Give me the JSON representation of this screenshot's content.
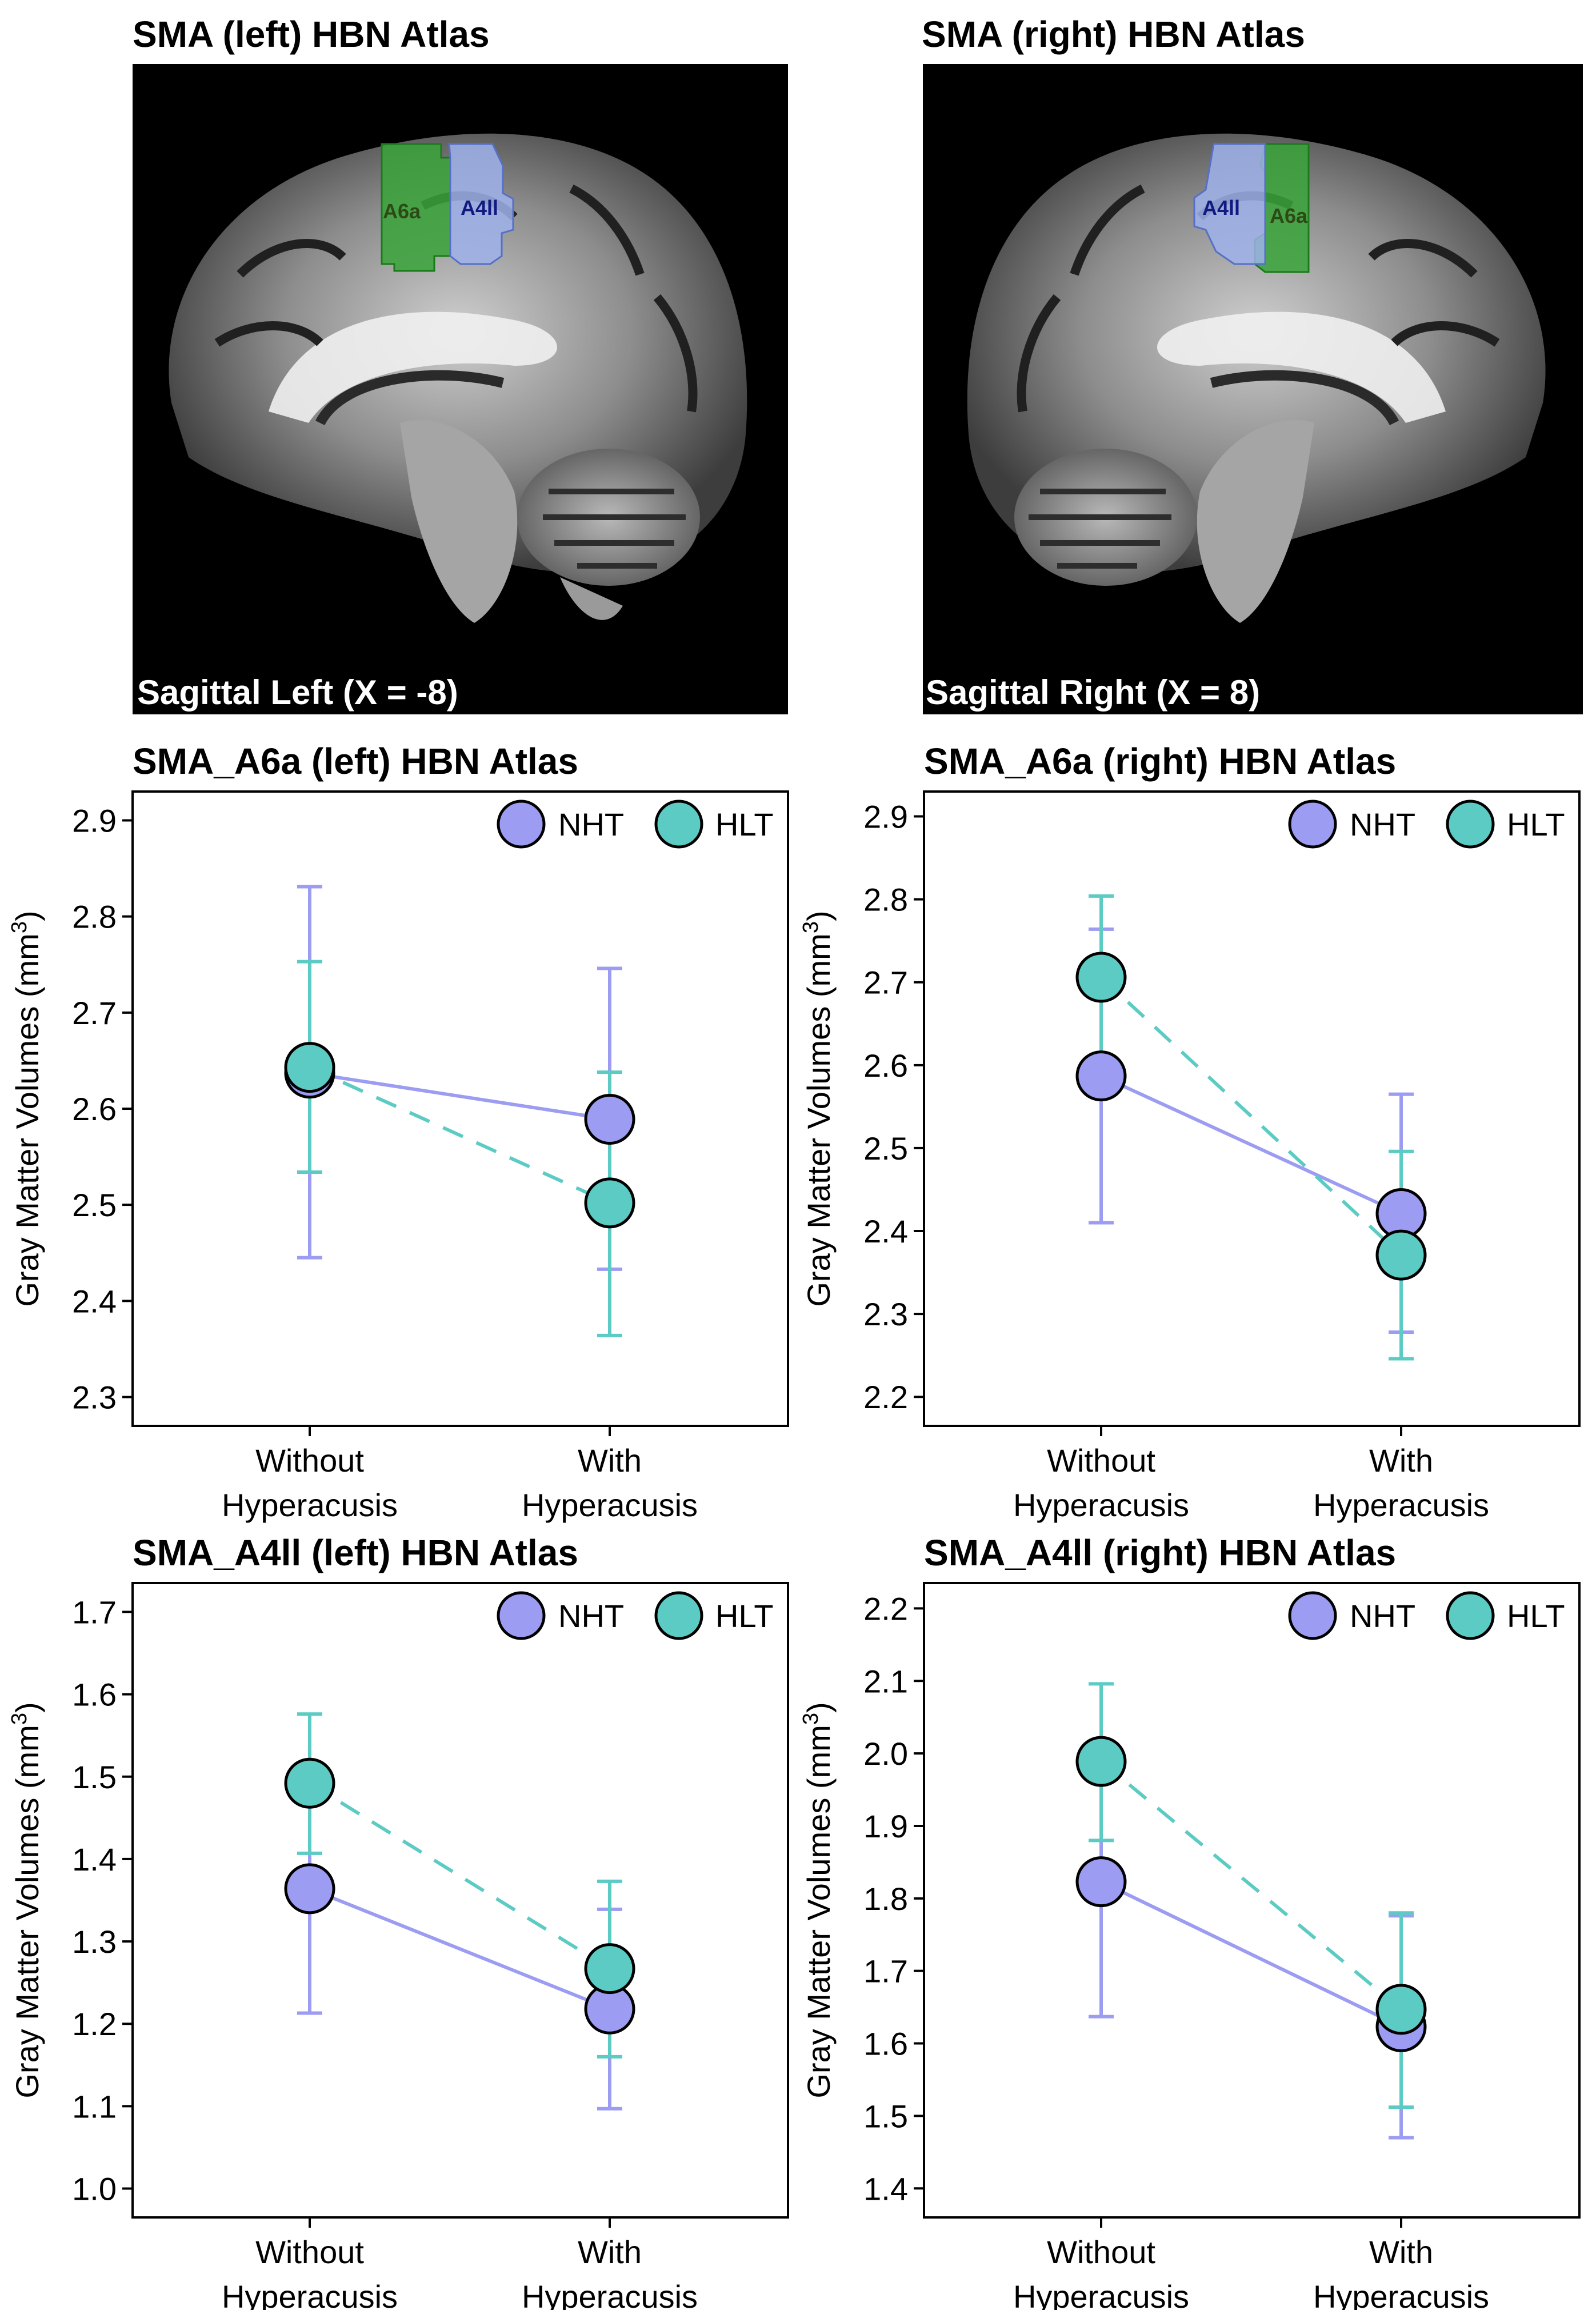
{
  "images": [
    {
      "title": "SMA (left) HBN Atlas",
      "caption": "Sagittal Left (X = -8)",
      "regions": [
        {
          "label": "A6a",
          "color": "#3aa53a"
        },
        {
          "label": "A4ll",
          "color": "#9fb2ea"
        }
      ]
    },
    {
      "title": "SMA (right) HBN Atlas",
      "caption": "Sagittal Right (X = 8)",
      "regions": [
        {
          "label": "A4ll",
          "color": "#9fb2ea"
        },
        {
          "label": "A6a",
          "color": "#3aa53a"
        }
      ]
    }
  ],
  "legend": {
    "nht": "NHT",
    "hlt": "HLT"
  },
  "colors": {
    "nht": "#9c9cf2",
    "hlt": "#5ccbc4",
    "nht_line": "#9c9cf2",
    "hlt_line": "#5ccbc4"
  },
  "chart_data": [
    {
      "type": "line",
      "title": "SMA_A6a (left) HBN Atlas",
      "ylabel": "Gray Matter Volumes (mm3)",
      "categories": [
        "Without Hyperacusis",
        "With Hyperacusis"
      ],
      "category_lines": [
        [
          "Without",
          "Hyperacusis"
        ],
        [
          "With",
          "Hyperacusis"
        ]
      ],
      "ylim": [
        2.27,
        2.93
      ],
      "yticks": [
        "2.3",
        "2.4",
        "2.5",
        "2.6",
        "2.7",
        "2.8",
        "2.9"
      ],
      "series": [
        {
          "name": "NHT",
          "values": [
            2.637,
            2.589
          ],
          "err_low": [
            2.445,
            2.433
          ],
          "err_high": [
            2.831,
            2.746
          ]
        },
        {
          "name": "HLT",
          "values": [
            2.643,
            2.502
          ],
          "err_low": [
            2.534,
            2.364
          ],
          "err_high": [
            2.753,
            2.638
          ]
        }
      ]
    },
    {
      "type": "line",
      "title": "SMA_A6a (right) HBN Atlas",
      "ylabel": "Gray Matter Volumes (mm3)",
      "categories": [
        "Without Hyperacusis",
        "With Hyperacusis"
      ],
      "category_lines": [
        [
          "Without",
          "Hyperacusis"
        ],
        [
          "With",
          "Hyperacusis"
        ]
      ],
      "ylim": [
        2.165,
        2.93
      ],
      "yticks": [
        "2.2",
        "2.3",
        "2.4",
        "2.5",
        "2.6",
        "2.7",
        "2.8",
        "2.9"
      ],
      "series": [
        {
          "name": "NHT",
          "values": [
            2.587,
            2.421
          ],
          "err_low": [
            2.41,
            2.278
          ],
          "err_high": [
            2.764,
            2.565
          ]
        },
        {
          "name": "HLT",
          "values": [
            2.706,
            2.371
          ],
          "err_low": [
            2.607,
            2.246
          ],
          "err_high": [
            2.804,
            2.496
          ]
        }
      ]
    },
    {
      "type": "line",
      "title": "SMA_A4ll (left) HBN Atlas",
      "ylabel": "Gray Matter Volumes (mm3)",
      "categories": [
        "Without Hyperacusis",
        "With Hyperacusis"
      ],
      "category_lines": [
        [
          "Without",
          "Hyperacusis"
        ],
        [
          "With",
          "Hyperacusis"
        ]
      ],
      "ylim": [
        0.965,
        1.735
      ],
      "yticks": [
        "1.0",
        "1.1",
        "1.2",
        "1.3",
        "1.4",
        "1.5",
        "1.6",
        "1.7"
      ],
      "series": [
        {
          "name": "NHT",
          "values": [
            1.364,
            1.218
          ],
          "err_low": [
            1.213,
            1.097
          ],
          "err_high": [
            1.515,
            1.339
          ]
        },
        {
          "name": "HLT",
          "values": [
            1.492,
            1.267
          ],
          "err_low": [
            1.407,
            1.16
          ],
          "err_high": [
            1.576,
            1.373
          ]
        }
      ]
    },
    {
      "type": "line",
      "title": "SMA_A4ll (right) HBN Atlas",
      "ylabel": "Gray Matter Volumes (mm3)",
      "categories": [
        "Without Hyperacusis",
        "With Hyperacusis"
      ],
      "category_lines": [
        [
          "Without",
          "Hyperacusis"
        ],
        [
          "With",
          "Hyperacusis"
        ]
      ],
      "ylim": [
        1.36,
        2.235
      ],
      "yticks": [
        "1.4",
        "1.5",
        "1.6",
        "1.7",
        "1.8",
        "1.9",
        "2.0",
        "2.1",
        "2.2"
      ],
      "series": [
        {
          "name": "NHT",
          "values": [
            1.823,
            1.623
          ],
          "err_low": [
            1.637,
            1.47
          ],
          "err_high": [
            2.01,
            1.776
          ]
        },
        {
          "name": "HLT",
          "values": [
            1.989,
            1.647
          ],
          "err_low": [
            1.88,
            1.512
          ],
          "err_high": [
            2.096,
            1.78
          ]
        }
      ]
    }
  ]
}
